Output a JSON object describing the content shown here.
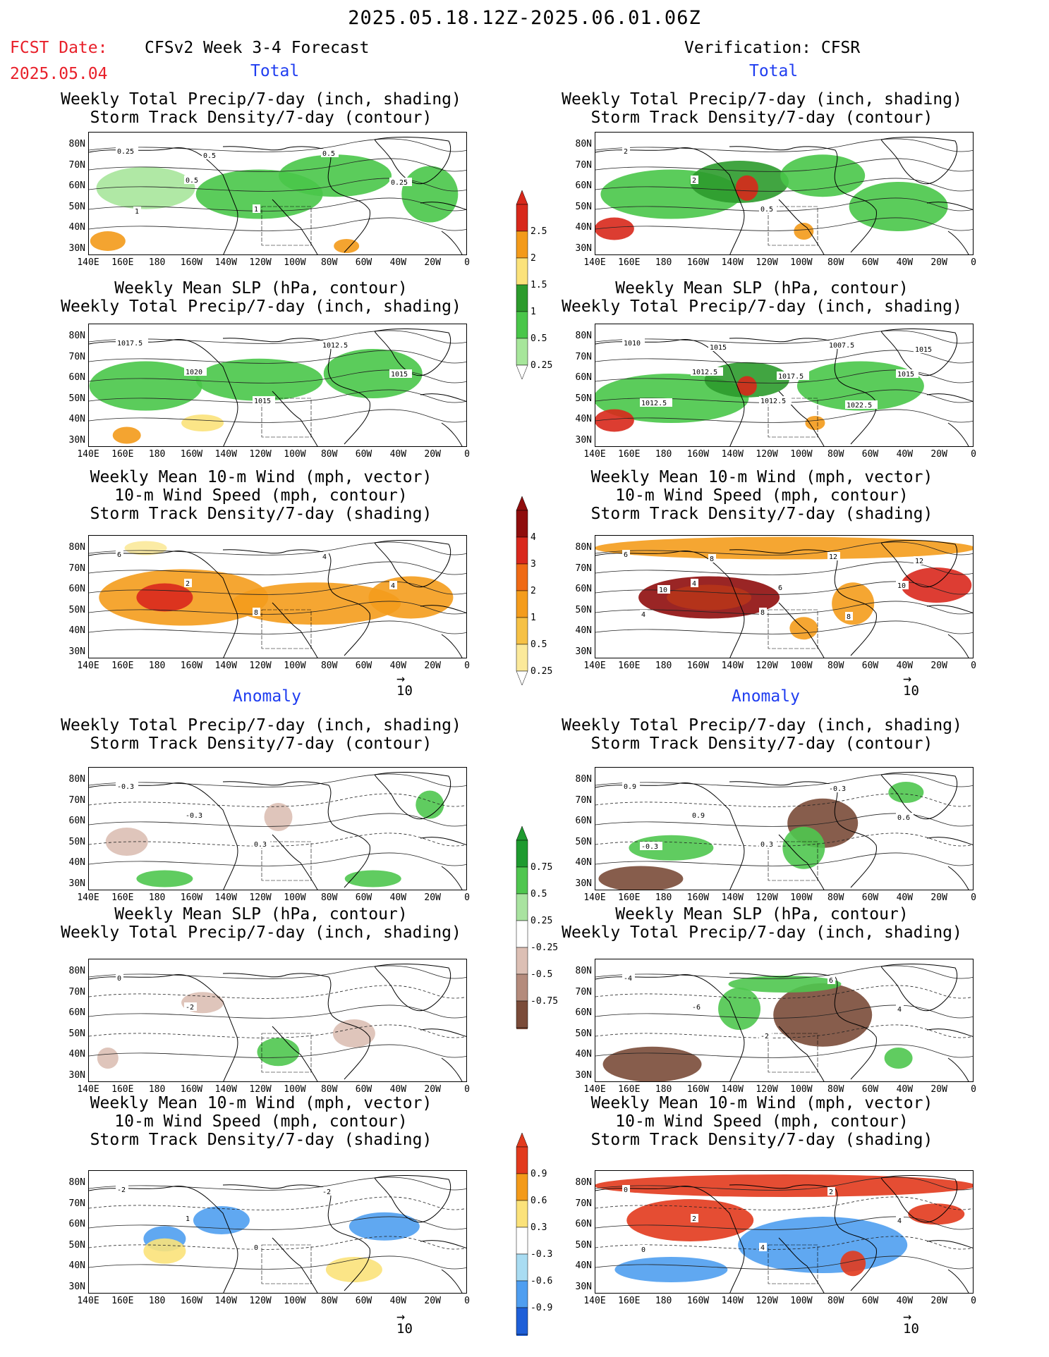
{
  "header": {
    "date_range": "2025.05.18.12Z-2025.06.01.06Z",
    "fcst_label": "FCST Date:",
    "fcst_date": "2025.05.04",
    "forecast_title": "CFSv2 Week 3-4 Forecast",
    "verification_title": "Verification: CFSR"
  },
  "sections": {
    "total": "Total",
    "anomaly": "Anomaly"
  },
  "titles": {
    "precip_track": [
      "Weekly Total Precip/7-day (inch, shading)",
      "Storm Track Density/7-day (contour)"
    ],
    "slp_precip": [
      "Weekly Mean SLP (hPa, contour)",
      "Weekly Total Precip/7-day (inch, shading)"
    ],
    "wind": [
      "Weekly Mean 10-m Wind (mph, vector)",
      "10-m Wind Speed (mph, contour)",
      "Storm Track Density/7-day (shading)"
    ]
  },
  "axes": {
    "lat_ticks": [
      "80N",
      "70N",
      "60N",
      "50N",
      "40N",
      "30N"
    ],
    "lon_ticks": [
      "140E",
      "160E",
      "180",
      "160W",
      "140W",
      "120W",
      "100W",
      "80W",
      "60W",
      "40W",
      "20W",
      "0"
    ]
  },
  "vector_reference": "10",
  "colorbars": {
    "precip_total": {
      "labels": [
        "2.5",
        "2",
        "1.5",
        "1",
        "0.5",
        "0.25"
      ],
      "colors": [
        "#d8281b",
        "#f39a1a",
        "#fbe27a",
        "#2c9b2c",
        "#49c649",
        "#a7e69b"
      ]
    },
    "track_total": {
      "labels": [
        "4",
        "3",
        "2",
        "1",
        "0.5",
        "0.25"
      ],
      "colors": [
        "#8f0d0d",
        "#d9281d",
        "#ef6a15",
        "#f49c1c",
        "#f6c145",
        "#fbe99a"
      ]
    },
    "precip_anom": {
      "labels": [
        "0.75",
        "0.5",
        "0.25",
        "-0.25",
        "-0.5",
        "-0.75"
      ],
      "colors": [
        "#1e9a2f",
        "#4fc64f",
        "#a9e3a0",
        "#ffffff",
        "#dcbfb4",
        "#b48b7c",
        "#7a4b39"
      ]
    },
    "track_anom": {
      "labels": [
        "0.9",
        "0.6",
        "0.3",
        "-0.3",
        "-0.6",
        "-0.9"
      ],
      "colors": [
        "#e23a1d",
        "#f39a1a",
        "#fbe27a",
        "#ffffff",
        "#a9dcf2",
        "#4f9ef0",
        "#1e5fd8"
      ]
    }
  },
  "panels": {
    "fc_total_precip": {
      "labels": [
        "0.25",
        "0.5",
        "1",
        "0.5",
        "0.25",
        "1",
        "0.5"
      ]
    },
    "fc_total_slp": {
      "labels": [
        "1017.5",
        "1020",
        "1015",
        "1012.5",
        "1015"
      ]
    },
    "fc_total_wind": {
      "labels": [
        "6",
        "2",
        "8",
        "4",
        "4"
      ]
    },
    "vf_total_precip": {
      "labels": [
        "2",
        "2",
        "0.5"
      ]
    },
    "vf_total_slp": {
      "labels": [
        "1010",
        "1012.5",
        "1012.5",
        "1007.5",
        "1015",
        "1012.5",
        "1015",
        "1017.5",
        "1022.5",
        "1015"
      ]
    },
    "vf_total_wind": {
      "labels": [
        "6",
        "4",
        "8",
        "12",
        "10",
        "4",
        "8",
        "6",
        "8",
        "12",
        "10"
      ]
    },
    "fc_anom_precip": {
      "labels": [
        "-0.3",
        "-0.3",
        "0.3"
      ]
    },
    "fc_anom_slp": {
      "labels": [
        "0",
        "-2"
      ]
    },
    "fc_anom_wind": {
      "labels": [
        "-2",
        "1",
        "0",
        "-2"
      ]
    },
    "vf_anom_precip": {
      "labels": [
        "0.9",
        "0.9",
        "0.3",
        "-0.3",
        "0.6",
        "-0.3"
      ]
    },
    "vf_anom_slp": {
      "labels": [
        "-4",
        "-6",
        "-2",
        "6",
        "4"
      ]
    },
    "vf_anom_wind": {
      "labels": [
        "0",
        "2",
        "4",
        "2",
        "4",
        "0"
      ]
    }
  }
}
